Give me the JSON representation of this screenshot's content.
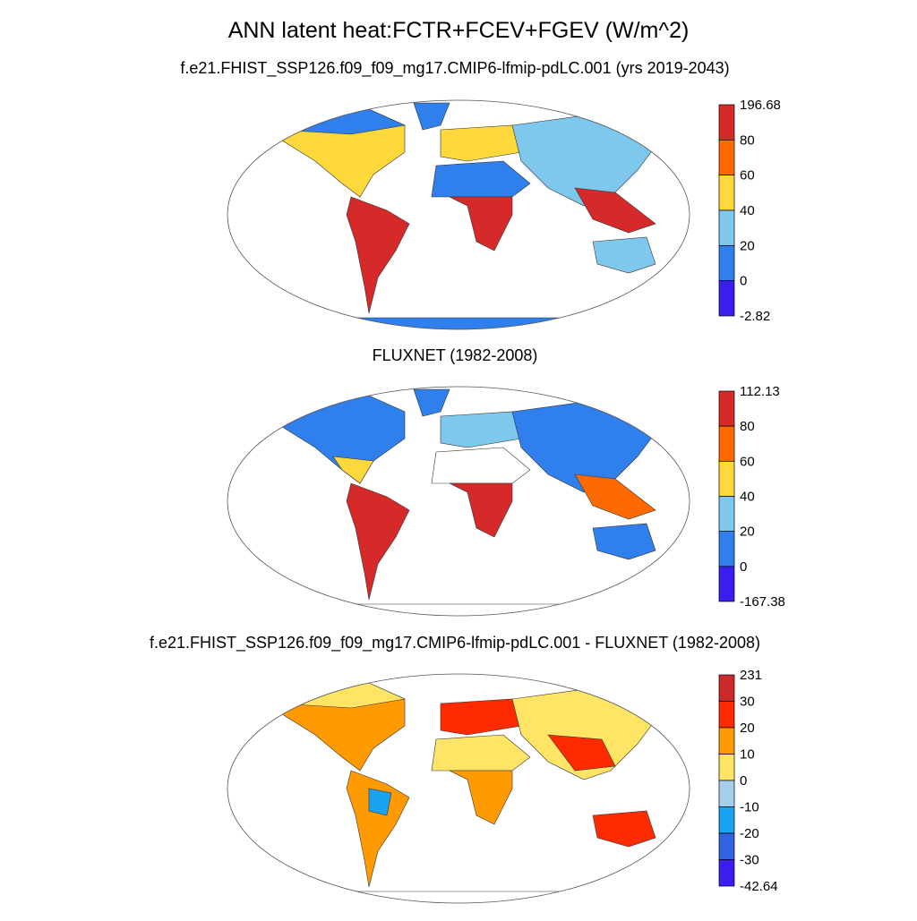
{
  "header": {
    "title": "ANN latent heat:FCTR+FCEV+FGEV (W/m^2)"
  },
  "panels": [
    {
      "title": "f.e21.FHIST_SSP126.f09_f09_mg17.CMIP6-lfmip-pdLC.001 (yrs 2019-2043)",
      "colorbar": {
        "labels": [
          196.68,
          80,
          60,
          40,
          20,
          0,
          -2.82
        ],
        "colors": [
          "#d62a2a",
          "#ff6a00",
          "#ffd83c",
          "#7ec8ee",
          "#2f80ec",
          "#3a1ef0"
        ]
      }
    },
    {
      "title": "FLUXNET (1982-2008)",
      "colorbar": {
        "labels": [
          112.13,
          80,
          60,
          40,
          20,
          0,
          -167.38
        ],
        "colors": [
          "#d62a2a",
          "#ff6a00",
          "#ffd83c",
          "#7ec8ee",
          "#2f80ec",
          "#3a1ef0"
        ]
      }
    },
    {
      "title": "f.e21.FHIST_SSP126.f09_f09_mg17.CMIP6-lfmip-pdLC.001 - FLUXNET (1982-2008)",
      "colorbar": {
        "labels": [
          231,
          30,
          20,
          10,
          0,
          -10,
          -20,
          -30,
          -42.64
        ],
        "colors": [
          "#cc2a2a",
          "#ff2a00",
          "#ff9a00",
          "#ffe466",
          "#a6cfee",
          "#1aa3f0",
          "#2f63e0",
          "#3a1ef0"
        ]
      }
    }
  ]
}
